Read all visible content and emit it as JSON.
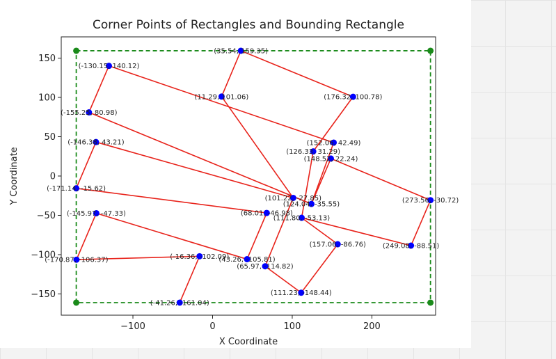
{
  "chart_data": {
    "type": "scatter",
    "title": "Corner Points of Rectangles and Bounding Rectangle",
    "xlabel": "X Coordinate",
    "ylabel": "Y Coordinate",
    "xlim": [
      -190,
      280
    ],
    "ylim": [
      -177,
      177
    ],
    "xticks": [
      -100,
      0,
      100,
      200
    ],
    "xtick_labels": [
      "−100",
      "0",
      "100",
      "200"
    ],
    "yticks": [
      -150,
      -100,
      -50,
      0,
      50,
      100,
      150
    ],
    "ytick_labels": [
      "−150",
      "−100",
      "−50",
      "0",
      "50",
      "100",
      "150"
    ],
    "grid": false,
    "rectangle_color": "#e8231b",
    "corner_color": "#0000ff",
    "bounding_color": "#1a8a1a",
    "rectangles": [
      [
        {
          "x": -130.15,
          "y": 140.12,
          "label": "(-130.15, 140.12)"
        },
        {
          "x": 152.06,
          "y": 42.49,
          "label": "(152.06, 42.49)"
        },
        {
          "x": 124.04,
          "y": -35.55,
          "label": "(124.04, -35.55)"
        },
        {
          "x": -155.25,
          "y": 80.98,
          "label": "(-155.25, 80.98)"
        }
      ],
      [
        {
          "x": 35.54,
          "y": 159.35,
          "label": "(35.54, 159.35)"
        },
        {
          "x": 176.32,
          "y": 100.78,
          "label": "(176.32, 100.78)"
        },
        {
          "x": 111.8,
          "y": -53.13,
          "label": "(111.80, -53.13)"
        },
        {
          "x": 11.29,
          "y": 101.06,
          "label": "(11.29, 101.06)"
        }
      ],
      [
        {
          "x": -146.38,
          "y": 43.21,
          "label": "(-146.38, 43.21)"
        },
        {
          "x": 101.22,
          "y": -27.85,
          "label": "(101.22, -27.85)"
        },
        {
          "x": 65.97,
          "y": -114.82,
          "label": "(65.97, -114.82)"
        },
        {
          "x": -171.14,
          "y": -15.62,
          "label": "(-171.14, -15.62)"
        }
      ],
      [
        {
          "x": 126.33,
          "y": 31.29,
          "label": "(126.33, 31.29)"
        },
        {
          "x": 273.56,
          "y": -30.72,
          "label": "(273.56, -30.72)"
        },
        {
          "x": 249.08,
          "y": -88.51,
          "label": "(249.08, -88.51)"
        },
        {
          "x": 68.01,
          "y": -46.98,
          "label": "(68.01, -46.98)"
        }
      ],
      [
        {
          "x": -145.97,
          "y": -47.33,
          "label": "(-145.97, -47.33)"
        },
        {
          "x": 43.26,
          "y": -105.81,
          "label": "(43.26, -105.81)"
        },
        {
          "x": 111.23,
          "y": -148.44,
          "label": "(111.23, -148.44)"
        },
        {
          "x": -170.87,
          "y": -106.37,
          "label": "(-170.87, -106.37)"
        }
      ],
      [
        {
          "x": 148.52,
          "y": 22.24,
          "label": "(148.52, 22.24)"
        },
        {
          "x": 157.06,
          "y": -86.76,
          "label": "(157.06, -86.76)"
        },
        {
          "x": -16.36,
          "y": -102.09,
          "label": "(-16.36, -102.09)"
        },
        {
          "x": -41.26,
          "y": -161.04,
          "label": "(-41.26, -161.04)"
        }
      ]
    ],
    "rect_edges": [
      [
        [
          -130.15,
          140.12
        ],
        [
          152.06,
          42.49
        ]
      ],
      [
        [
          152.06,
          42.49
        ],
        [
          124.04,
          -35.55
        ]
      ],
      [
        [
          -155.25,
          80.98
        ],
        [
          124.04,
          -35.55
        ]
      ],
      [
        [
          -130.15,
          140.12
        ],
        [
          -155.25,
          80.98
        ]
      ],
      [
        [
          35.54,
          159.35
        ],
        [
          176.32,
          100.78
        ]
      ],
      [
        [
          176.32,
          100.78
        ],
        [
          126.33,
          31.29
        ]
      ],
      [
        [
          126.33,
          31.29
        ],
        [
          111.8,
          -53.13
        ]
      ],
      [
        [
          35.54,
          159.35
        ],
        [
          11.29,
          101.06
        ]
      ],
      [
        [
          11.29,
          101.06
        ],
        [
          101.22,
          -27.85
        ]
      ],
      [
        [
          -146.38,
          43.21
        ],
        [
          101.22,
          -27.85
        ]
      ],
      [
        [
          -146.38,
          43.21
        ],
        [
          -171.14,
          -15.62
        ]
      ],
      [
        [
          -171.14,
          -15.62
        ],
        [
          68.01,
          -46.98
        ]
      ],
      [
        [
          68.01,
          -46.98
        ],
        [
          43.26,
          -105.81
        ]
      ],
      [
        [
          -145.97,
          -47.33
        ],
        [
          43.26,
          -105.81
        ]
      ],
      [
        [
          -145.97,
          -47.33
        ],
        [
          -170.87,
          -106.37
        ]
      ],
      [
        [
          -170.87,
          -106.37
        ],
        [
          -16.36,
          -102.09
        ]
      ],
      [
        [
          -16.36,
          -102.09
        ],
        [
          -41.26,
          -161.04
        ]
      ],
      [
        [
          148.52,
          22.24
        ],
        [
          273.56,
          -30.72
        ]
      ],
      [
        [
          273.56,
          -30.72
        ],
        [
          249.08,
          -88.51
        ]
      ],
      [
        [
          111.8,
          -53.13
        ],
        [
          249.08,
          -88.51
        ]
      ],
      [
        [
          148.52,
          22.24
        ],
        [
          124.04,
          -35.55
        ]
      ],
      [
        [
          111.8,
          -53.13
        ],
        [
          157.06,
          -86.76
        ]
      ],
      [
        [
          157.06,
          -86.76
        ],
        [
          111.23,
          -148.44
        ]
      ],
      [
        [
          65.97,
          -114.82
        ],
        [
          111.23,
          -148.44
        ]
      ],
      [
        [
          65.97,
          -114.82
        ],
        [
          101.22,
          -27.85
        ]
      ]
    ],
    "bounding_rectangle": {
      "x_min": -171.14,
      "x_max": 273.56,
      "y_min": -161.04,
      "y_max": 159.35
    }
  }
}
